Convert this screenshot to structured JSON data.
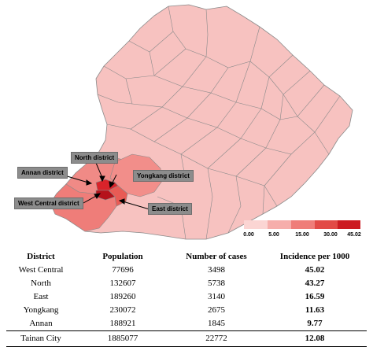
{
  "map": {
    "labels": {
      "north": "North district",
      "annan": "Annan district",
      "yongkang": "Yongkang district",
      "west_central": "West Central district",
      "east": "East district"
    },
    "colors": {
      "base": "#f7c2c0",
      "light": "#fad0ce",
      "medium": "#f08a86",
      "yongkang": "#f28e8a",
      "east": "#e85b55",
      "north": "#d9232a",
      "west_central": "#b5121b",
      "border": "#8a8a8a"
    }
  },
  "legend": {
    "ticks": [
      "0.00",
      "5.00",
      "15.00",
      "30.00",
      "45.02"
    ],
    "colors": [
      "#fbd5d3",
      "#f6aeab",
      "#ef7d79",
      "#e24a46",
      "#cc1b21"
    ]
  },
  "table": {
    "headers": [
      "District",
      "Population",
      "Number of cases",
      "Incidence per 1000"
    ],
    "rows": [
      {
        "district": "West Central",
        "population": "77696",
        "cases": "3498",
        "incidence": "45.02"
      },
      {
        "district": "North",
        "population": "132607",
        "cases": "5738",
        "incidence": "43.27"
      },
      {
        "district": "East",
        "population": "189260",
        "cases": "3140",
        "incidence": "16.59"
      },
      {
        "district": "Yongkang",
        "population": "230072",
        "cases": "2675",
        "incidence": "11.63"
      },
      {
        "district": "Annan",
        "population": "188921",
        "cases": "1845",
        "incidence": "9.77"
      }
    ],
    "total": {
      "district": "Tainan City",
      "population": "1885077",
      "cases": "22772",
      "incidence": "12.08"
    }
  }
}
